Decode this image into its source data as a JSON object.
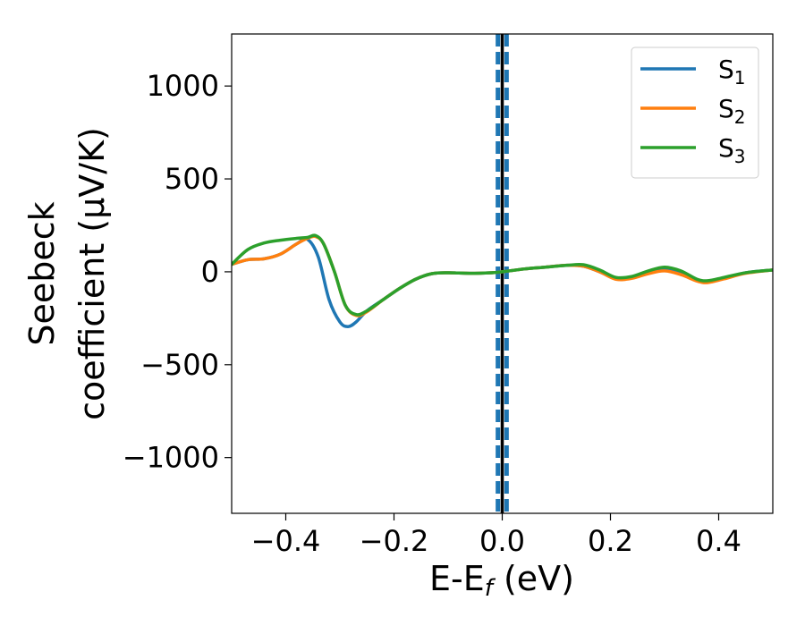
{
  "chart_data": {
    "type": "line",
    "xlabel": "E-E_f (eV)",
    "xlabel_parts": {
      "main": "E-E",
      "sub": "f",
      "tail": " (eV)"
    },
    "ylabel_lines": [
      "Seebeck",
      "coefficient  (μV/K)"
    ],
    "xlim": [
      -0.5,
      0.5
    ],
    "ylim": [
      -1300,
      1280
    ],
    "xticks": [
      -0.4,
      -0.2,
      0.0,
      0.2,
      0.4
    ],
    "xtick_labels": [
      "−0.4",
      "−0.2",
      "0.0",
      "0.2",
      "0.4"
    ],
    "yticks": [
      1000,
      500,
      0,
      -500,
      -1000
    ],
    "ytick_labels": [
      "1000",
      "500",
      "0",
      "−500",
      "−1000"
    ],
    "grid": false,
    "legend_position": "top-right",
    "vertical_lines": [
      {
        "x": 0.0,
        "color": "#000000",
        "style": "solid"
      },
      {
        "x": -0.008,
        "color": "#1f77b4",
        "style": "dashed"
      },
      {
        "x": 0.008,
        "color": "#1f77b4",
        "style": "dashed"
      }
    ],
    "series": [
      {
        "name": "S1",
        "name_main": "S",
        "name_sub": "1",
        "color": "#1f77b4",
        "x": [
          -0.5,
          -0.47,
          -0.44,
          -0.41,
          -0.38,
          -0.36,
          -0.34,
          -0.32,
          -0.3,
          -0.285,
          -0.27,
          -0.25,
          -0.22,
          -0.19,
          -0.16,
          -0.13,
          -0.1,
          -0.06,
          -0.02,
          0.0,
          0.04,
          0.08,
          0.12,
          0.15,
          0.18,
          0.21,
          0.24,
          0.27,
          0.3,
          0.33,
          0.36,
          0.38,
          0.41,
          0.45,
          0.5
        ],
        "y": [
          40,
          65,
          70,
          95,
          150,
          175,
          80,
          -150,
          -270,
          -295,
          -270,
          -210,
          -150,
          -90,
          -40,
          -10,
          -5,
          -8,
          -5,
          0,
          15,
          25,
          35,
          30,
          0,
          -35,
          -30,
          -5,
          10,
          -10,
          -45,
          -55,
          -35,
          -5,
          10
        ]
      },
      {
        "name": "S2",
        "name_main": "S",
        "name_sub": "2",
        "color": "#ff7f0e",
        "x": [
          -0.5,
          -0.47,
          -0.44,
          -0.41,
          -0.38,
          -0.36,
          -0.345,
          -0.33,
          -0.31,
          -0.29,
          -0.27,
          -0.25,
          -0.22,
          -0.19,
          -0.16,
          -0.13,
          -0.1,
          -0.06,
          -0.02,
          0.0,
          0.04,
          0.08,
          0.12,
          0.15,
          0.18,
          0.21,
          0.24,
          0.27,
          0.3,
          0.33,
          0.36,
          0.38,
          0.41,
          0.45,
          0.5
        ],
        "y": [
          40,
          65,
          70,
          95,
          150,
          180,
          190,
          150,
          0,
          -180,
          -235,
          -215,
          -150,
          -90,
          -40,
          -10,
          -5,
          -8,
          -5,
          0,
          15,
          25,
          35,
          30,
          0,
          -40,
          -35,
          -10,
          5,
          -15,
          -50,
          -58,
          -38,
          -8,
          10
        ]
      },
      {
        "name": "S3",
        "name_main": "S",
        "name_sub": "3",
        "color": "#2ca02c",
        "x": [
          -0.5,
          -0.47,
          -0.44,
          -0.41,
          -0.38,
          -0.36,
          -0.345,
          -0.33,
          -0.31,
          -0.29,
          -0.27,
          -0.25,
          -0.22,
          -0.19,
          -0.16,
          -0.13,
          -0.1,
          -0.06,
          -0.02,
          0.0,
          0.04,
          0.08,
          0.12,
          0.15,
          0.18,
          0.21,
          0.24,
          0.27,
          0.3,
          0.33,
          0.36,
          0.38,
          0.41,
          0.45,
          0.5
        ],
        "y": [
          40,
          120,
          155,
          170,
          180,
          185,
          195,
          150,
          0,
          -180,
          -230,
          -210,
          -150,
          -90,
          -40,
          -10,
          -5,
          -8,
          -5,
          0,
          15,
          25,
          35,
          38,
          10,
          -30,
          -25,
          5,
          25,
          5,
          -40,
          -48,
          -30,
          -5,
          10
        ]
      }
    ]
  }
}
